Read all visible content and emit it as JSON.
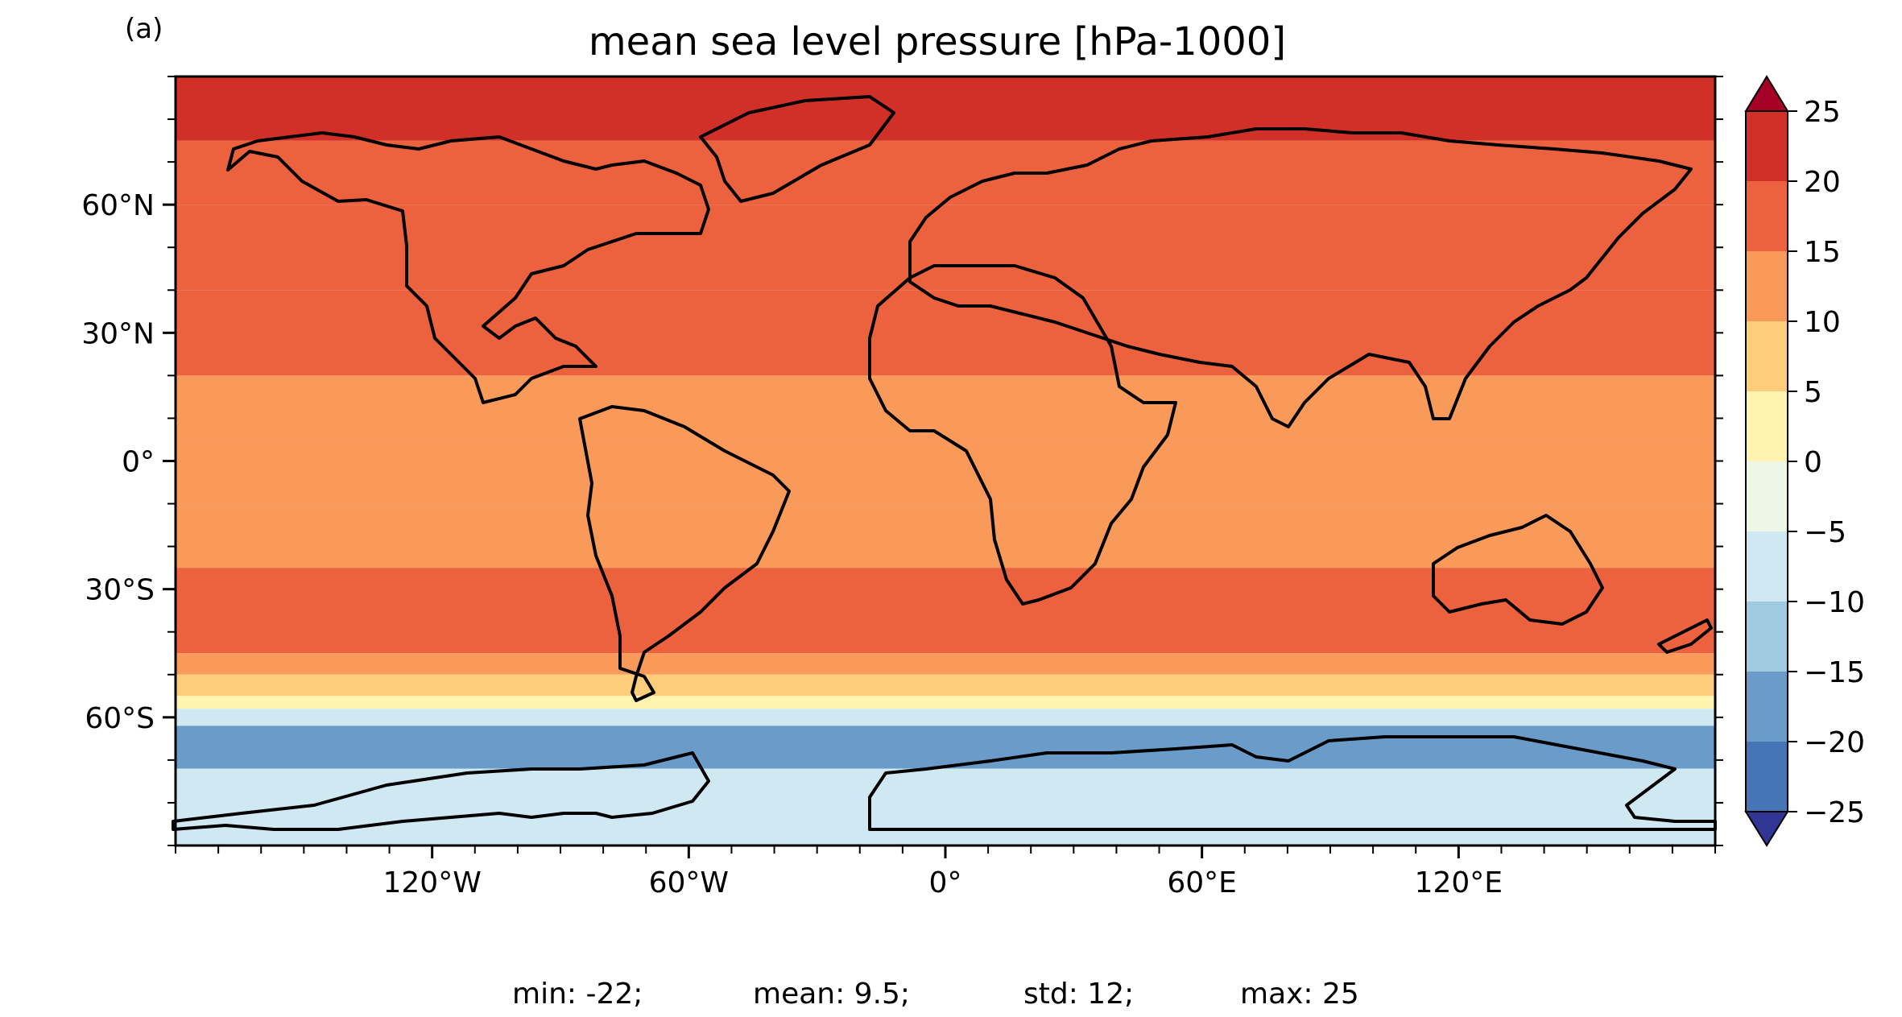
{
  "figure": {
    "panel_label": "(a)",
    "title": "mean sea level pressure [hPa-1000]",
    "stats": {
      "min": "min: -22;",
      "mean": "mean: 9.5;",
      "std": "std: 12;",
      "max": "max: 25"
    }
  },
  "map": {
    "projection": "PlateCarree",
    "lon_range": [
      -180,
      180
    ],
    "lat_range": [
      -90,
      90
    ],
    "lat_tick_labels": [
      {
        "lat": 60,
        "label": "60°N"
      },
      {
        "lat": 30,
        "label": "30°N"
      },
      {
        "lat": 0,
        "label": "0°"
      },
      {
        "lat": -30,
        "label": "30°S"
      },
      {
        "lat": -60,
        "label": "60°S"
      }
    ],
    "lon_tick_labels": [
      {
        "lon": -120,
        "label": "120°W"
      },
      {
        "lon": -60,
        "label": "60°W"
      },
      {
        "lon": 0,
        "label": "0°"
      },
      {
        "lon": 60,
        "label": "60°E"
      },
      {
        "lon": 120,
        "label": "120°E"
      }
    ],
    "lat_band_means": [
      {
        "lat": [
          75,
          90
        ],
        "value": 22
      },
      {
        "lat": [
          60,
          75
        ],
        "value": 17
      },
      {
        "lat": [
          40,
          60
        ],
        "value": 17
      },
      {
        "lat": [
          20,
          40
        ],
        "value": 17
      },
      {
        "lat": [
          5,
          20
        ],
        "value": 12
      },
      {
        "lat": [
          -10,
          5
        ],
        "value": 10
      },
      {
        "lat": [
          -25,
          -10
        ],
        "value": 12
      },
      {
        "lat": [
          -45,
          -25
        ],
        "value": 17
      },
      {
        "lat": [
          -50,
          -45
        ],
        "value": 12
      },
      {
        "lat": [
          -55,
          -50
        ],
        "value": 7
      },
      {
        "lat": [
          -58,
          -55
        ],
        "value": 2
      },
      {
        "lat": [
          -62,
          -58
        ],
        "value": -7
      },
      {
        "lat": [
          -72,
          -62
        ],
        "value": -17
      },
      {
        "lat": [
          -90,
          -72
        ],
        "value": -7
      }
    ]
  },
  "colorbar": {
    "levels": [
      -25,
      -20,
      -15,
      -10,
      -5,
      0,
      5,
      10,
      15,
      20,
      25
    ],
    "tick_labels": [
      "−25",
      "−20",
      "−15",
      "−10",
      "−5",
      "0",
      "5",
      "10",
      "15",
      "20",
      "25"
    ],
    "colors": [
      "#4575b4",
      "#6a9bc9",
      "#9fcae0",
      "#cfe8f2",
      "#eef6e6",
      "#fff3b0",
      "#fdcd7c",
      "#f99a5a",
      "#ec623f",
      "#d03027"
    ],
    "extend_low_color": "#313695",
    "extend_high_color": "#a50026"
  }
}
